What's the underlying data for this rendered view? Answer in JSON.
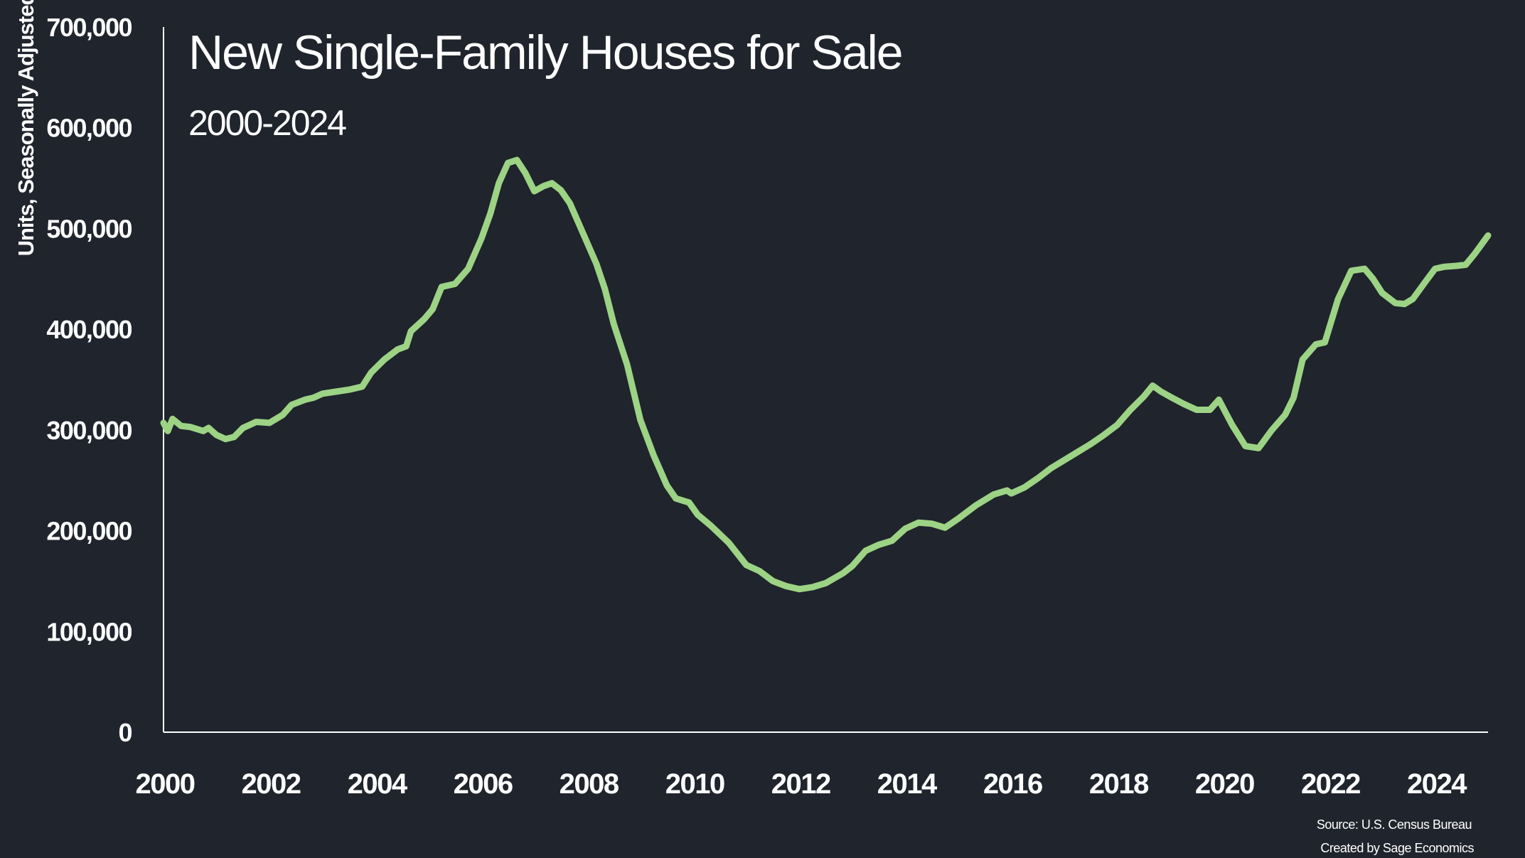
{
  "colors": {
    "background": "#20242c",
    "line": "#9cd385",
    "axis": "#ffffff",
    "text": "#ffffff"
  },
  "chart_data": {
    "type": "line",
    "title": "New Single-Family Houses for Sale",
    "subtitle": "2000-2024",
    "ylabel": "Units, Seasonally Adjusted",
    "xlabel": "",
    "xlim": [
      2000,
      2025
    ],
    "ylim": [
      0,
      700000
    ],
    "x_ticks": [
      "2000",
      "2002",
      "2004",
      "2006",
      "2008",
      "2010",
      "2012",
      "2014",
      "2016",
      "2018",
      "2020",
      "2022",
      "2024"
    ],
    "y_ticks": [
      "0",
      "100,000",
      "200,000",
      "300,000",
      "400,000",
      "500,000",
      "600,000",
      "700,000"
    ],
    "grid": false,
    "legend": "none",
    "source_line1": "Source: U.S. Census Bureau",
    "source_line2": "Created by Sage Economics",
    "series": [
      {
        "points": [
          [
            2000.0,
            307000
          ],
          [
            2000.08,
            299000
          ],
          [
            2000.17,
            311000
          ],
          [
            2000.33,
            304000
          ],
          [
            2000.5,
            303000
          ],
          [
            2000.75,
            299000
          ],
          [
            2000.85,
            302000
          ],
          [
            2001.0,
            295000
          ],
          [
            2001.17,
            291000
          ],
          [
            2001.33,
            293000
          ],
          [
            2001.5,
            302000
          ],
          [
            2001.75,
            308000
          ],
          [
            2002.0,
            307000
          ],
          [
            2002.25,
            315000
          ],
          [
            2002.42,
            325000
          ],
          [
            2002.67,
            330000
          ],
          [
            2002.83,
            332000
          ],
          [
            2003.0,
            336000
          ],
          [
            2003.25,
            338000
          ],
          [
            2003.5,
            340000
          ],
          [
            2003.75,
            343000
          ],
          [
            2003.92,
            357000
          ],
          [
            2004.17,
            370000
          ],
          [
            2004.42,
            380000
          ],
          [
            2004.58,
            383000
          ],
          [
            2004.67,
            398000
          ],
          [
            2004.92,
            410000
          ],
          [
            2005.08,
            420000
          ],
          [
            2005.25,
            442000
          ],
          [
            2005.5,
            445000
          ],
          [
            2005.75,
            460000
          ],
          [
            2006.0,
            490000
          ],
          [
            2006.17,
            515000
          ],
          [
            2006.33,
            545000
          ],
          [
            2006.5,
            565000
          ],
          [
            2006.67,
            568000
          ],
          [
            2006.83,
            555000
          ],
          [
            2007.0,
            537000
          ],
          [
            2007.17,
            542000
          ],
          [
            2007.33,
            545000
          ],
          [
            2007.5,
            538000
          ],
          [
            2007.67,
            525000
          ],
          [
            2007.92,
            495000
          ],
          [
            2008.17,
            465000
          ],
          [
            2008.33,
            440000
          ],
          [
            2008.5,
            405000
          ],
          [
            2008.75,
            365000
          ],
          [
            2009.0,
            310000
          ],
          [
            2009.25,
            275000
          ],
          [
            2009.5,
            245000
          ],
          [
            2009.67,
            232000
          ],
          [
            2009.92,
            228000
          ],
          [
            2010.08,
            216000
          ],
          [
            2010.33,
            205000
          ],
          [
            2010.67,
            188000
          ],
          [
            2011.0,
            166000
          ],
          [
            2011.25,
            160000
          ],
          [
            2011.5,
            150000
          ],
          [
            2011.75,
            145000
          ],
          [
            2012.0,
            142000
          ],
          [
            2012.25,
            144000
          ],
          [
            2012.5,
            148000
          ],
          [
            2012.83,
            158000
          ],
          [
            2013.0,
            165000
          ],
          [
            2013.25,
            180000
          ],
          [
            2013.5,
            186000
          ],
          [
            2013.75,
            190000
          ],
          [
            2014.0,
            202000
          ],
          [
            2014.25,
            208000
          ],
          [
            2014.5,
            207000
          ],
          [
            2014.75,
            203000
          ],
          [
            2015.0,
            212000
          ],
          [
            2015.33,
            225000
          ],
          [
            2015.67,
            236000
          ],
          [
            2015.92,
            240000
          ],
          [
            2016.0,
            237000
          ],
          [
            2016.25,
            243000
          ],
          [
            2016.5,
            252000
          ],
          [
            2016.75,
            262000
          ],
          [
            2017.0,
            270000
          ],
          [
            2017.25,
            278000
          ],
          [
            2017.5,
            286000
          ],
          [
            2017.75,
            295000
          ],
          [
            2018.0,
            305000
          ],
          [
            2018.25,
            320000
          ],
          [
            2018.5,
            333000
          ],
          [
            2018.67,
            344000
          ],
          [
            2018.83,
            338000
          ],
          [
            2019.0,
            333000
          ],
          [
            2019.25,
            326000
          ],
          [
            2019.5,
            320000
          ],
          [
            2019.75,
            320000
          ],
          [
            2019.92,
            330000
          ],
          [
            2020.17,
            305000
          ],
          [
            2020.42,
            284000
          ],
          [
            2020.67,
            282000
          ],
          [
            2020.92,
            300000
          ],
          [
            2021.17,
            315000
          ],
          [
            2021.33,
            332000
          ],
          [
            2021.5,
            370000
          ],
          [
            2021.75,
            385000
          ],
          [
            2021.92,
            387000
          ],
          [
            2022.17,
            430000
          ],
          [
            2022.42,
            458000
          ],
          [
            2022.67,
            460000
          ],
          [
            2022.83,
            450000
          ],
          [
            2023.0,
            436000
          ],
          [
            2023.25,
            426000
          ],
          [
            2023.42,
            425000
          ],
          [
            2023.58,
            430000
          ],
          [
            2023.83,
            448000
          ],
          [
            2024.0,
            460000
          ],
          [
            2024.17,
            462000
          ],
          [
            2024.42,
            463000
          ],
          [
            2024.58,
            464000
          ],
          [
            2024.75,
            475000
          ],
          [
            2025.0,
            493000
          ]
        ]
      }
    ]
  }
}
